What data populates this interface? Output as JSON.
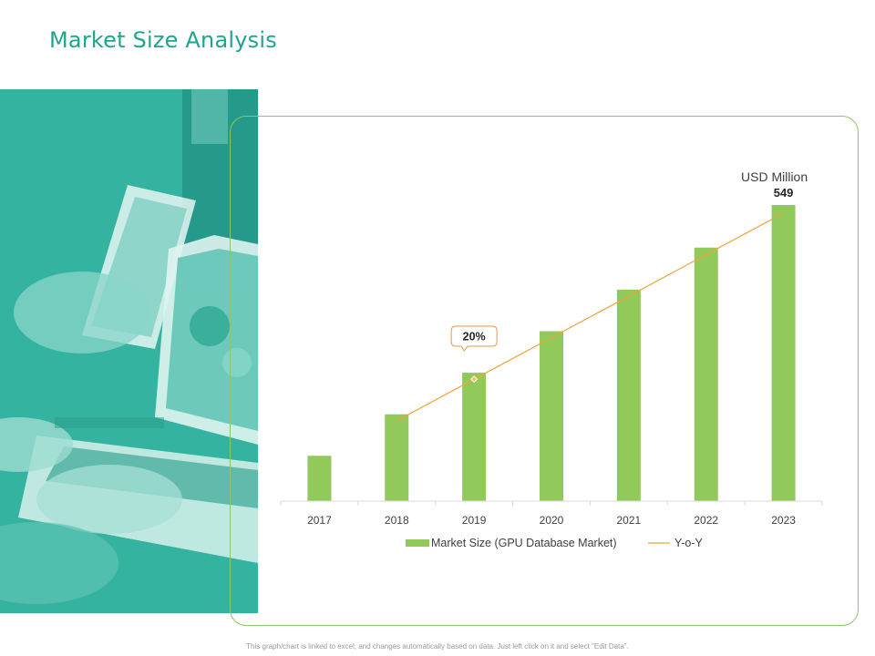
{
  "page": {
    "title": "Market Size Analysis",
    "footnote": "This graph/chart is linked to excel, and changes automatically based on data. Just left click on it and select \"Edit Data\"."
  },
  "colors": {
    "title": "#1fa58f",
    "bar": "#92c95b",
    "line": "#f0a33a",
    "frame": "#8cc66b",
    "photo_tint": "#2fb29f"
  },
  "chart_data": {
    "type": "bar",
    "categories": [
      "2017",
      "2018",
      "2019",
      "2020",
      "2021",
      "2022",
      "2023"
    ],
    "series": [
      {
        "name": "Market Size (GPU Database Market)",
        "type": "bar",
        "values": [
          84,
          161,
          238,
          315,
          392,
          470,
          549
        ]
      },
      {
        "name": "Y-o-Y",
        "type": "line",
        "values": [
          null,
          149,
          226,
          303,
          380,
          457,
          534
        ]
      }
    ],
    "unit_label": "USD Million",
    "value_label": "549",
    "annotation": "20%",
    "ylim": [
      0,
      600
    ],
    "legend_position": "bottom",
    "grid": false
  }
}
